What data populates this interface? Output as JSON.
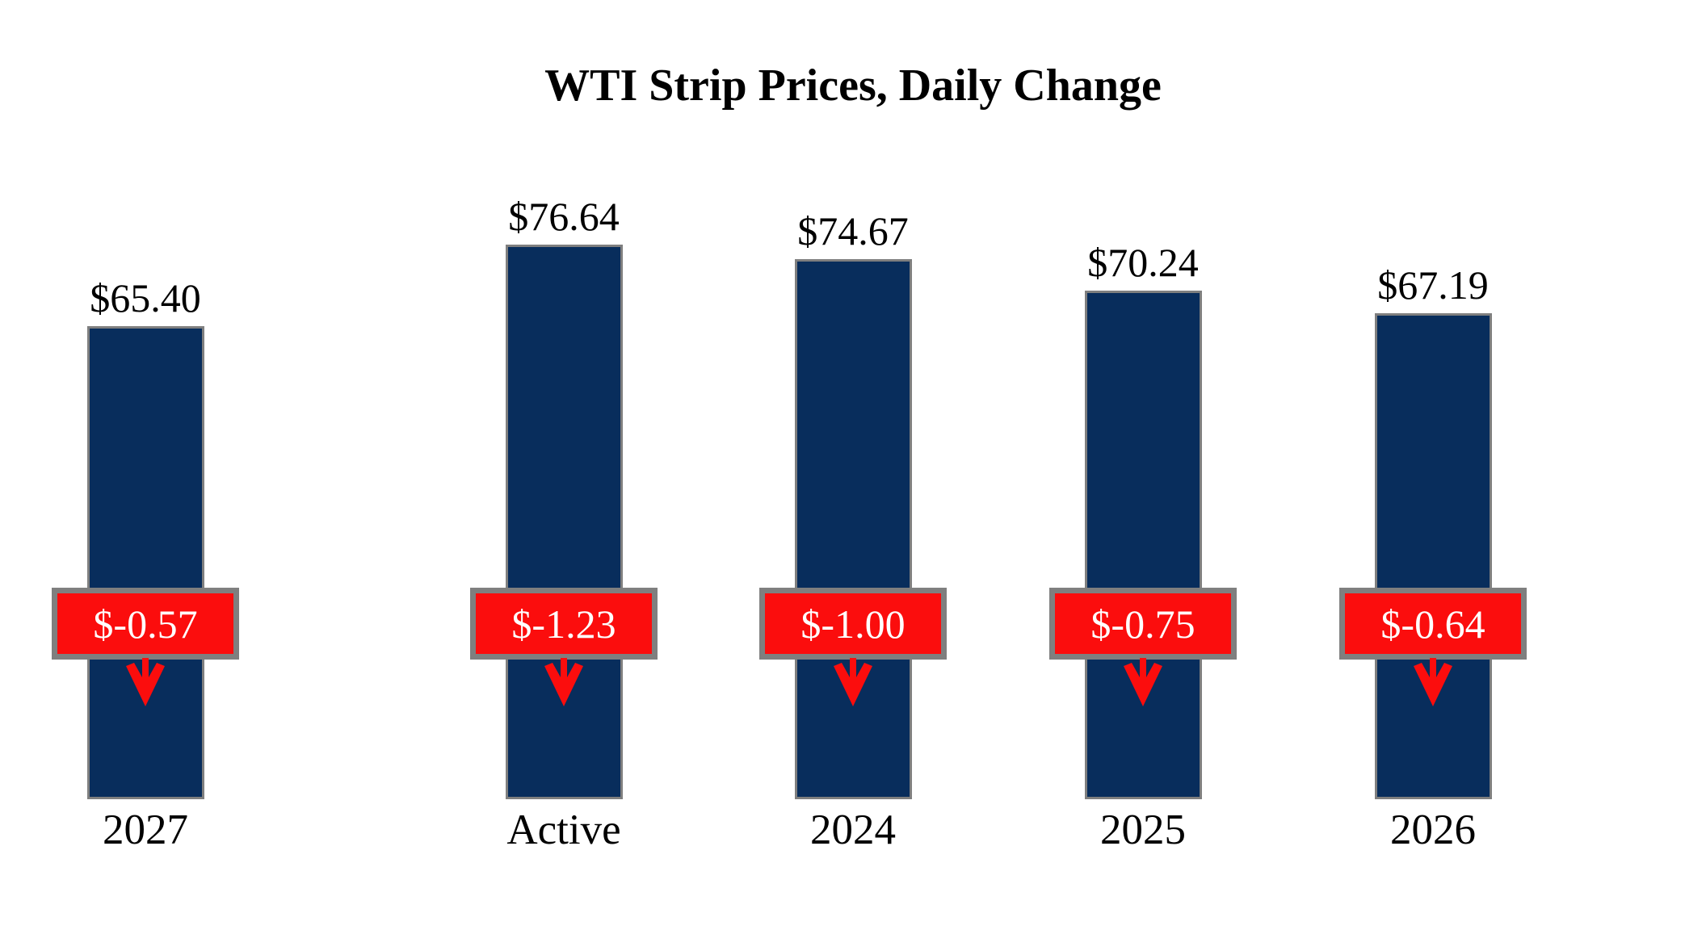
{
  "title": "WTI Strip Prices, Daily Change",
  "colors": {
    "bar_fill": "#082D5C",
    "bar_border": "#7F7F7F",
    "change_box_fill": "#FB0D0D",
    "change_box_border": "#7F7F7F",
    "change_text": "#FFFFFF",
    "label_text": "#000000",
    "background": "#FFFFFF"
  },
  "chart_data": {
    "type": "bar",
    "title": "WTI Strip Prices, Daily Change",
    "categories": [
      "Active",
      "2024",
      "2025",
      "2026",
      "2027"
    ],
    "values": [
      76.64,
      74.67,
      70.24,
      67.19,
      65.4
    ],
    "changes": [
      -1.23,
      -1.0,
      -0.75,
      -0.64,
      -0.57
    ],
    "price_labels": [
      "$76.64",
      "$74.67",
      "$70.24",
      "$67.19",
      "$65.40"
    ],
    "change_labels": [
      "$-1.23",
      "$-1.00",
      "$-0.75",
      "$-0.64",
      "$-0.57"
    ],
    "xlabel": "",
    "ylabel": "",
    "ylim": [
      0,
      80
    ],
    "grid": false,
    "legend": "none",
    "bar_color": "#082D5C",
    "annotation_style": "red box with white text and red down arrow marking daily change per bar"
  }
}
